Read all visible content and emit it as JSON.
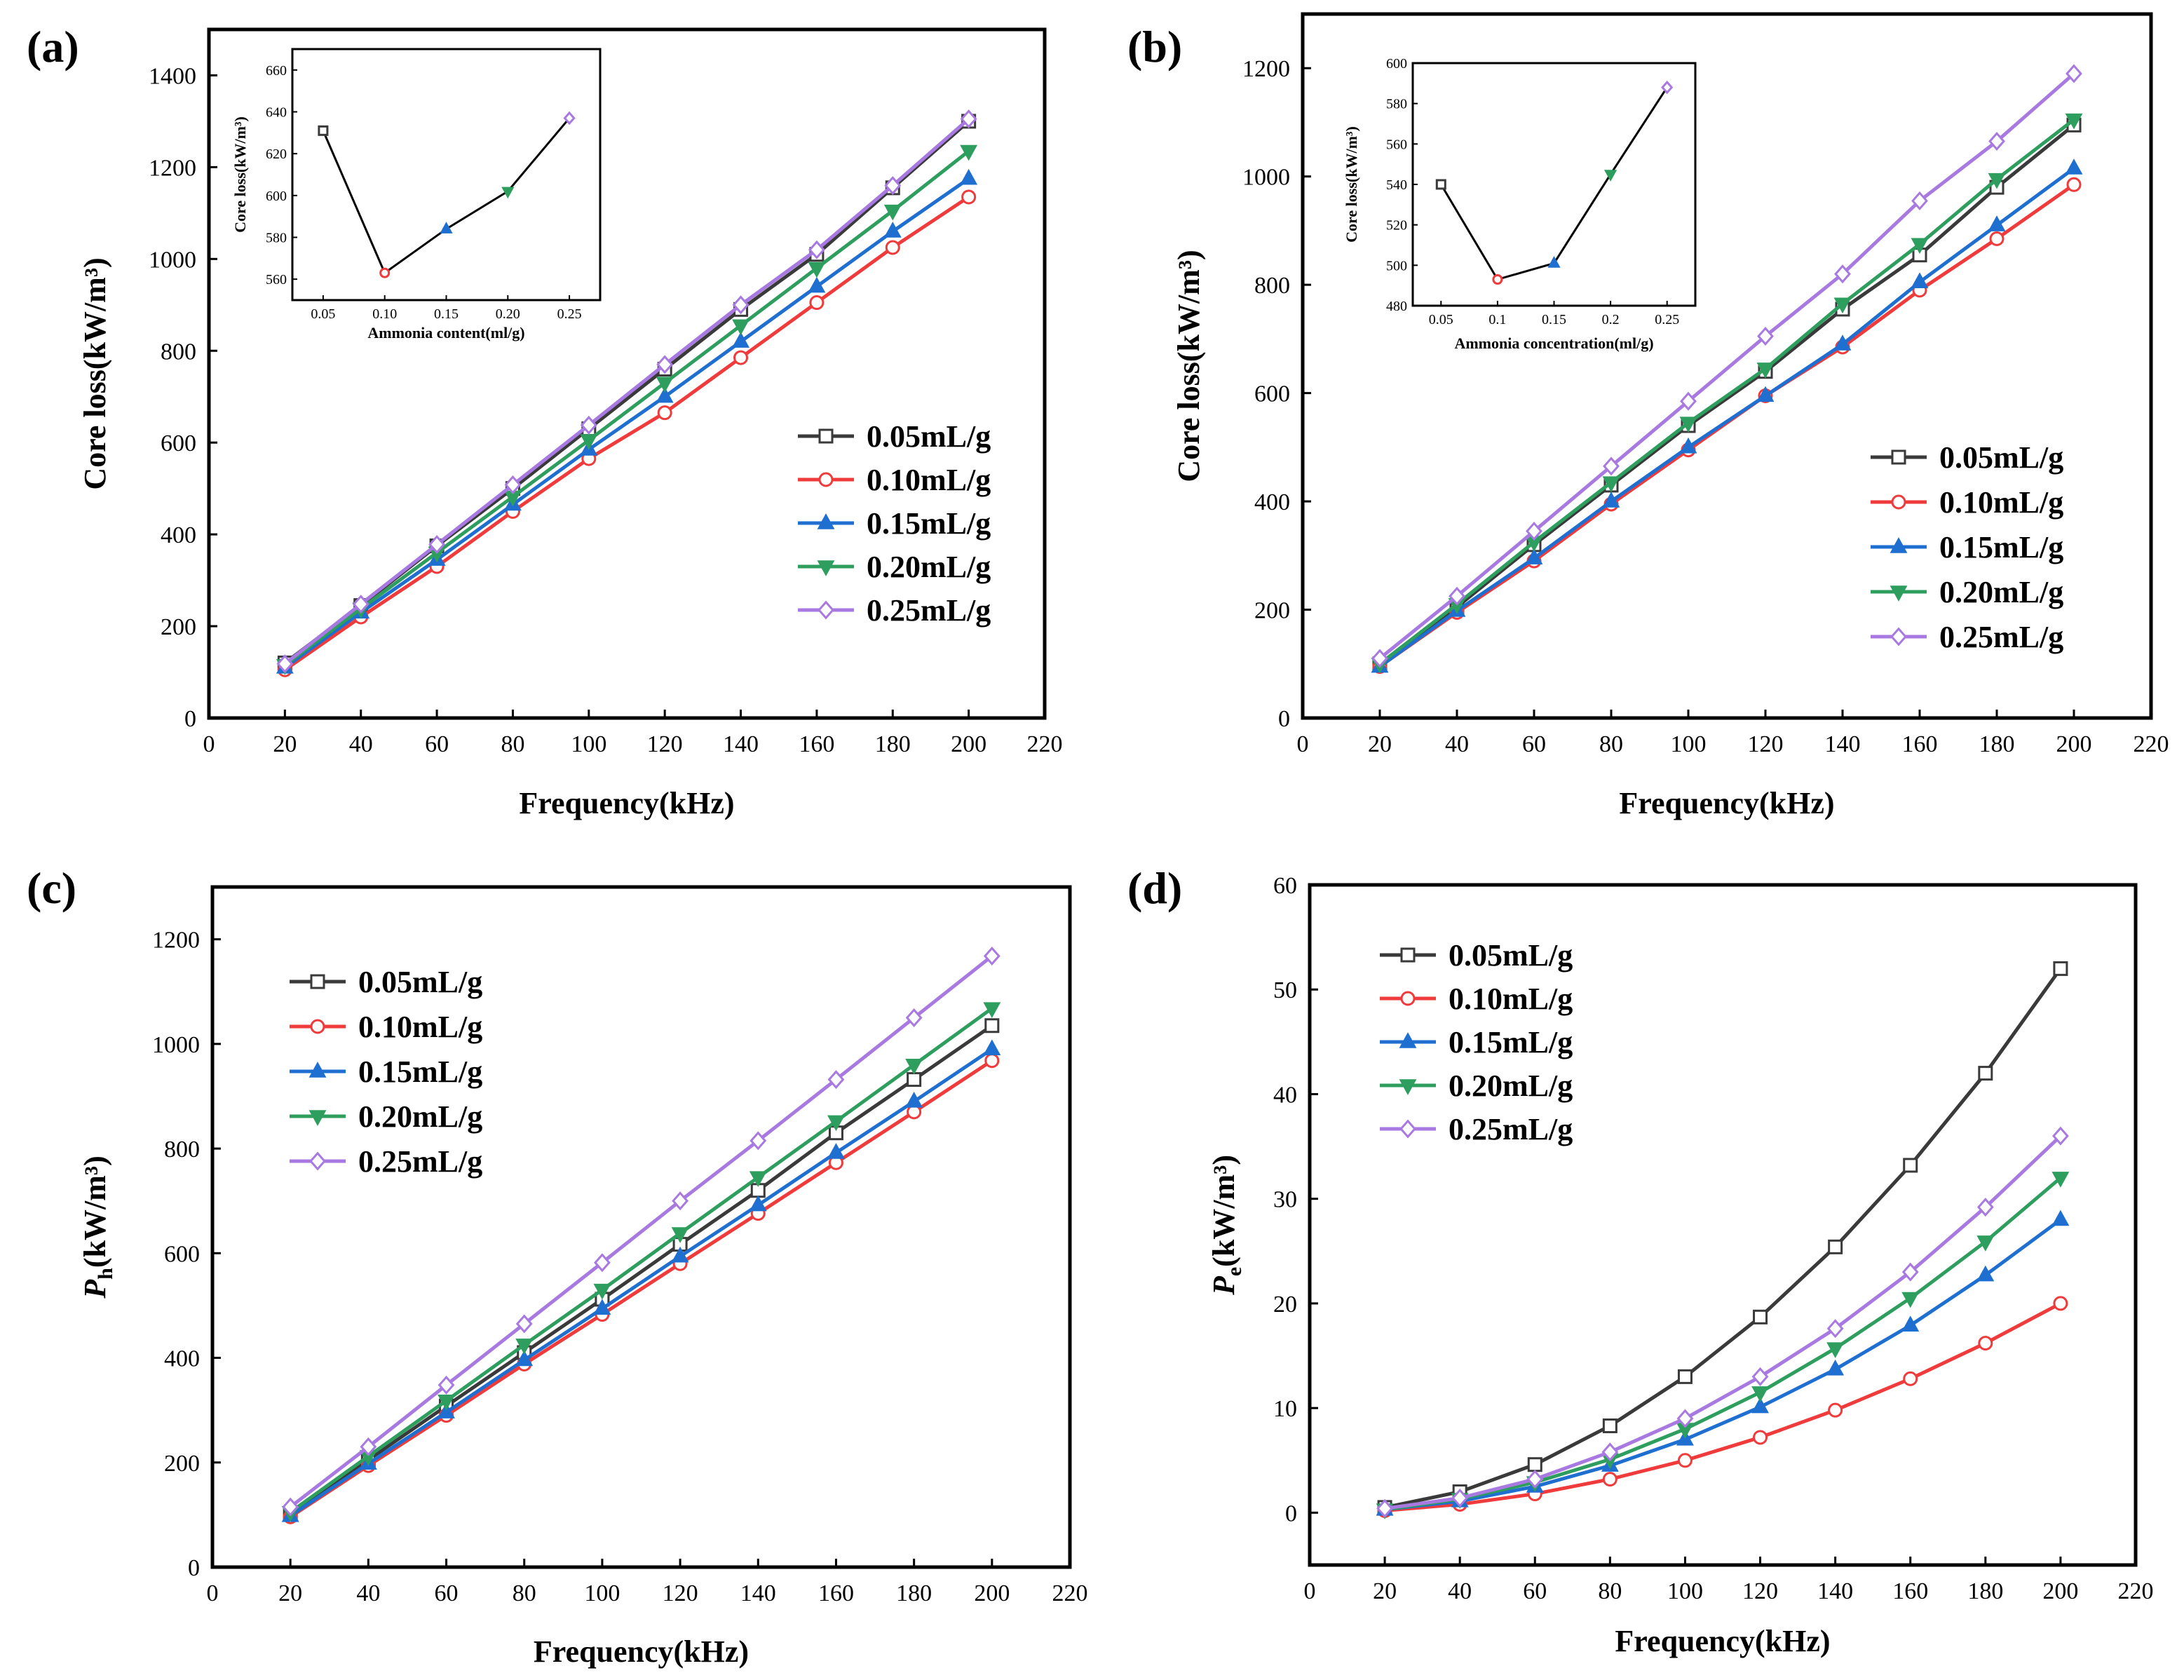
{
  "colors": {
    "0.05mL/g": "#3a3a3a",
    "0.10mL/g": "#ef3b3b",
    "0.15mL/g": "#1f6fd1",
    "0.20mL/g": "#2e9e5e",
    "0.25mL/g": "#a879e0"
  },
  "chart_data": [
    {
      "id": "a",
      "panel_label": "(a)",
      "type": "line",
      "xlabel": "Frequency(kHz)",
      "ylabel": "Core loss(kW/m³)",
      "xlim": [
        0,
        220
      ],
      "ylim": [
        0,
        1500
      ],
      "xticks": [
        "0",
        "20",
        "40",
        "60",
        "80",
        "100",
        "120",
        "140",
        "160",
        "180",
        "200",
        "220"
      ],
      "yticks": [
        "0",
        "200",
        "400",
        "600",
        "800",
        "1000",
        "1200",
        "1400"
      ],
      "legend_position": "center-right",
      "x": [
        20,
        40,
        60,
        80,
        100,
        120,
        140,
        160,
        180,
        200
      ],
      "series": [
        {
          "name": "0.05mL/g",
          "marker": "square",
          "values": [
            120,
            245,
            375,
            500,
            630,
            760,
            890,
            1010,
            1155,
            1300
          ]
        },
        {
          "name": "0.10mL/g",
          "marker": "circle",
          "values": [
            105,
            220,
            330,
            450,
            565,
            665,
            785,
            905,
            1025,
            1135
          ]
        },
        {
          "name": "0.15mL/g",
          "marker": "triangle-up",
          "values": [
            110,
            230,
            345,
            465,
            585,
            700,
            820,
            940,
            1060,
            1175
          ]
        },
        {
          "name": "0.20mL/g",
          "marker": "triangle-down",
          "values": [
            115,
            238,
            360,
            482,
            605,
            730,
            855,
            980,
            1105,
            1235
          ]
        },
        {
          "name": "0.25mL/g",
          "marker": "diamond",
          "values": [
            118,
            248,
            378,
            508,
            638,
            770,
            900,
            1020,
            1160,
            1305
          ]
        }
      ],
      "inset": {
        "xlabel": "Ammonia content(ml/g)",
        "ylabel": "Core loss(kW/m³)",
        "xlim": [
          0.025,
          0.275
        ],
        "ylim": [
          550,
          670
        ],
        "xticks": [
          "0.05",
          "0.10",
          "0.15",
          "0.20",
          "0.25"
        ],
        "yticks": [
          "560",
          "580",
          "600",
          "620",
          "640",
          "660"
        ],
        "x": [
          0.05,
          0.1,
          0.15,
          0.2,
          0.25
        ],
        "values": [
          631,
          563,
          584,
          602,
          637
        ]
      }
    },
    {
      "id": "b",
      "panel_label": "(b)",
      "type": "line",
      "xlabel": "Frequency(kHz)",
      "ylabel": "Core loss(kW/m³)",
      "xlim": [
        0,
        220
      ],
      "ylim": [
        0,
        1300
      ],
      "xticks": [
        "0",
        "20",
        "40",
        "60",
        "80",
        "100",
        "120",
        "140",
        "160",
        "180",
        "200",
        "220"
      ],
      "yticks": [
        "0",
        "200",
        "400",
        "600",
        "800",
        "1000",
        "1200"
      ],
      "legend_position": "center-right",
      "x": [
        20,
        40,
        60,
        80,
        100,
        120,
        140,
        160,
        180,
        200
      ],
      "series": [
        {
          "name": "0.05mL/g",
          "marker": "square",
          "values": [
            100,
            205,
            320,
            430,
            540,
            640,
            755,
            855,
            980,
            1095
          ]
        },
        {
          "name": "0.10mL/g",
          "marker": "circle",
          "values": [
            95,
            195,
            290,
            395,
            495,
            595,
            685,
            790,
            885,
            985
          ]
        },
        {
          "name": "0.15mL/g",
          "marker": "triangle-up",
          "values": [
            95,
            198,
            295,
            400,
            500,
            595,
            690,
            805,
            910,
            1015
          ]
        },
        {
          "name": "0.20mL/g",
          "marker": "triangle-down",
          "values": [
            100,
            210,
            325,
            435,
            545,
            645,
            765,
            875,
            995,
            1105
          ]
        },
        {
          "name": "0.25mL/g",
          "marker": "diamond",
          "values": [
            110,
            225,
            345,
            465,
            585,
            705,
            820,
            955,
            1065,
            1190
          ]
        }
      ],
      "inset": {
        "xlabel": "Ammonia concentration(ml/g)",
        "ylabel": "Core loss(kW/m³)",
        "xlim": [
          0.025,
          0.275
        ],
        "ylim": [
          480,
          600
        ],
        "xticks": [
          "0.05",
          "0.1",
          "0.15",
          "0.2",
          "0.25"
        ],
        "yticks": [
          "480",
          "500",
          "520",
          "540",
          "560",
          "580",
          "600"
        ],
        "x": [
          0.05,
          0.1,
          0.15,
          0.2,
          0.25
        ],
        "values": [
          540,
          493,
          501,
          545,
          588
        ]
      }
    },
    {
      "id": "c",
      "panel_label": "(c)",
      "type": "line",
      "xlabel": "Frequency(kHz)",
      "ylabel": "Pₕ(kW/m³)",
      "ylabel_main": "P",
      "ylabel_sub": "h",
      "ylabel_rest": "(kW/m³)",
      "xlim": [
        0,
        220
      ],
      "ylim": [
        0,
        1300
      ],
      "xticks": [
        "0",
        "20",
        "40",
        "60",
        "80",
        "100",
        "120",
        "140",
        "160",
        "180",
        "200",
        "220"
      ],
      "yticks": [
        "0",
        "200",
        "400",
        "600",
        "800",
        "1000",
        "1200"
      ],
      "legend_position": "top-left",
      "x": [
        20,
        40,
        60,
        80,
        100,
        120,
        140,
        160,
        180,
        200
      ],
      "series": [
        {
          "name": "0.05mL/g",
          "marker": "square",
          "values": [
            102,
            205,
            308,
            410,
            512,
            617,
            720,
            830,
            932,
            1035
          ]
        },
        {
          "name": "0.10mL/g",
          "marker": "circle",
          "values": [
            96,
            194,
            290,
            388,
            483,
            580,
            676,
            773,
            870,
            968
          ]
        },
        {
          "name": "0.15mL/g",
          "marker": "triangle-up",
          "values": [
            98,
            198,
            296,
            396,
            494,
            594,
            692,
            792,
            890,
            990
          ]
        },
        {
          "name": "0.20mL/g",
          "marker": "triangle-down",
          "values": [
            105,
            212,
            318,
            425,
            530,
            638,
            745,
            852,
            960,
            1068
          ]
        },
        {
          "name": "0.25mL/g",
          "marker": "diamond",
          "values": [
            115,
            230,
            348,
            465,
            582,
            700,
            815,
            932,
            1050,
            1168
          ]
        }
      ]
    },
    {
      "id": "d",
      "panel_label": "(d)",
      "type": "line",
      "xlabel": "Frequency(kHz)",
      "ylabel": "Pₑ(kW/m³)",
      "ylabel_main": "P",
      "ylabel_sub": "e",
      "ylabel_rest": "(kW/m³)",
      "xlim": [
        0,
        220
      ],
      "ylim": [
        -5,
        60
      ],
      "xticks": [
        "0",
        "20",
        "40",
        "60",
        "80",
        "100",
        "120",
        "140",
        "160",
        "180",
        "200",
        "220"
      ],
      "yticks": [
        "0",
        "10",
        "20",
        "30",
        "40",
        "50",
        "60"
      ],
      "legend_position": "top-left",
      "x": [
        20,
        40,
        60,
        80,
        100,
        120,
        140,
        160,
        180,
        200
      ],
      "series": [
        {
          "name": "0.05mL/g",
          "marker": "square",
          "values": [
            0.5,
            2.0,
            4.6,
            8.3,
            13.0,
            18.7,
            25.4,
            33.2,
            42.0,
            52.0
          ]
        },
        {
          "name": "0.10mL/g",
          "marker": "circle",
          "values": [
            0.2,
            0.8,
            1.8,
            3.2,
            5.0,
            7.2,
            9.8,
            12.8,
            16.2,
            20.0
          ]
        },
        {
          "name": "0.15mL/g",
          "marker": "triangle-up",
          "values": [
            0.3,
            1.1,
            2.5,
            4.5,
            7.0,
            10.1,
            13.7,
            17.9,
            22.7,
            28.0
          ]
        },
        {
          "name": "0.20mL/g",
          "marker": "triangle-down",
          "values": [
            0.3,
            1.3,
            2.9,
            5.1,
            8.0,
            11.5,
            15.7,
            20.5,
            25.9,
            32.0
          ]
        },
        {
          "name": "0.25mL/g",
          "marker": "diamond",
          "values": [
            0.4,
            1.4,
            3.2,
            5.8,
            9.0,
            13.0,
            17.6,
            23.0,
            29.2,
            36.0
          ]
        }
      ]
    }
  ]
}
